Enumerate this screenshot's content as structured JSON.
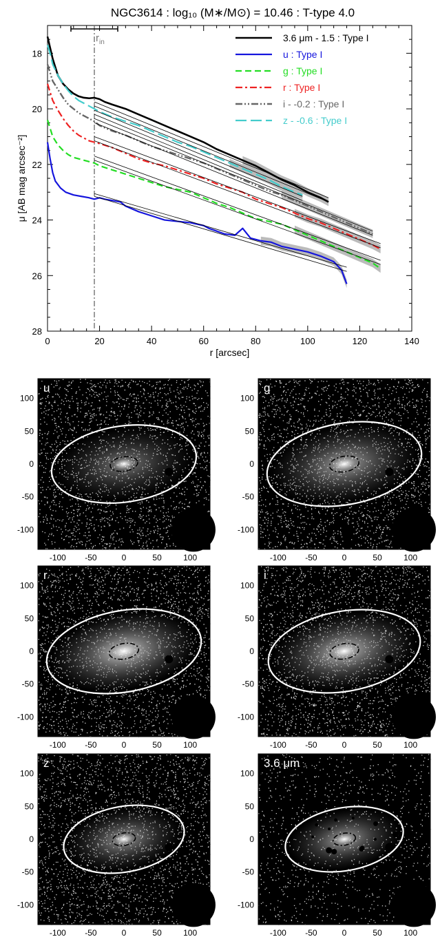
{
  "title": "NGC3614 : log₁₀ (M∗/M⊙) = 10.46 : T-type 4.0",
  "chart_data": [
    {
      "type": "line",
      "title": "NGC3614 : log10 (M*/Msun) = 10.46 : T-type 4.0",
      "xlabel": "r [arcsec]",
      "ylabel": "μ [AB mag arcsec⁻²]",
      "xlim": [
        0,
        140
      ],
      "ylim": [
        28,
        17
      ],
      "y_inverted": true,
      "xticks": [
        0,
        20,
        40,
        60,
        80,
        100,
        120,
        140
      ],
      "yticks": [
        18,
        20,
        22,
        24,
        26,
        28
      ],
      "grid": false,
      "legend_position": "top-right",
      "r_in": {
        "label": "r",
        "subscript": "in",
        "value": 18,
        "bar": [
          9,
          27
        ]
      },
      "series": [
        {
          "name": "3.6 μm - 1.5 : Type I",
          "color": "#000000",
          "dash": "solid",
          "width": 2.6,
          "label_color": "#000000",
          "x": [
            0,
            1,
            2,
            3,
            4,
            6,
            8,
            10,
            12,
            14,
            16,
            18,
            20,
            22,
            25,
            30,
            35,
            40,
            45,
            50,
            55,
            60,
            65,
            70,
            75,
            80,
            85,
            90,
            95,
            100,
            105,
            108
          ],
          "y": [
            17.4,
            17.8,
            18.2,
            18.5,
            18.8,
            19.1,
            19.3,
            19.45,
            19.55,
            19.6,
            19.62,
            19.6,
            19.65,
            19.75,
            19.85,
            20.0,
            20.2,
            20.4,
            20.6,
            20.8,
            21.0,
            21.2,
            21.45,
            21.65,
            21.85,
            22.05,
            22.3,
            22.55,
            22.75,
            23.0,
            23.2,
            23.35
          ],
          "fits": [
            {
              "x": [
                18,
                108
              ],
              "y": [
                19.9,
                23.35
              ]
            },
            {
              "x": [
                18,
                108
              ],
              "y": [
                19.75,
                23.2
              ]
            }
          ]
        },
        {
          "name": "u : Type I",
          "color": "#1515dd",
          "dash": "solid",
          "width": 2.2,
          "label_color": "#1515dd",
          "x": [
            0,
            1,
            2,
            3,
            5,
            7,
            10,
            13,
            16,
            18,
            20,
            22,
            25,
            28,
            30,
            35,
            40,
            45,
            50,
            55,
            60,
            62,
            65,
            68,
            72,
            75,
            78,
            82,
            86,
            90,
            95,
            100,
            105,
            110,
            113,
            115
          ],
          "y": [
            21.2,
            21.8,
            22.3,
            22.6,
            22.85,
            23.0,
            23.1,
            23.15,
            23.2,
            23.25,
            23.2,
            23.25,
            23.3,
            23.35,
            23.5,
            23.7,
            23.85,
            24.0,
            24.05,
            24.1,
            24.2,
            24.3,
            24.4,
            24.5,
            24.55,
            24.3,
            24.65,
            24.75,
            24.8,
            24.95,
            25.05,
            25.15,
            25.3,
            25.5,
            25.8,
            26.3
          ],
          "fits": [
            {
              "x": [
                18,
                115
              ],
              "y": [
                23.05,
                25.7
              ]
            },
            {
              "x": [
                18,
                115
              ],
              "y": [
                23.15,
                25.85
              ]
            }
          ]
        },
        {
          "name": "g : Type I",
          "color": "#22dd22",
          "dash": "dash",
          "width": 2.2,
          "label_color": "#22dd22",
          "x": [
            0,
            1,
            2,
            4,
            6,
            8,
            10,
            12,
            14,
            16,
            18,
            20,
            25,
            30,
            35,
            40,
            45,
            50,
            55,
            60,
            65,
            70,
            75,
            80,
            85,
            90,
            95,
            100,
            105,
            110,
            115,
            120,
            125,
            128
          ],
          "y": [
            20.4,
            20.7,
            21.0,
            21.3,
            21.5,
            21.65,
            21.75,
            21.8,
            21.85,
            21.9,
            21.95,
            22.05,
            22.2,
            22.35,
            22.5,
            22.65,
            22.8,
            22.9,
            23.0,
            23.2,
            23.4,
            23.55,
            23.75,
            23.95,
            24.05,
            24.15,
            24.35,
            24.55,
            24.75,
            24.95,
            25.15,
            25.35,
            25.55,
            25.75
          ],
          "fits": [
            {
              "x": [
                18,
                128
              ],
              "y": [
                21.85,
                25.6
              ]
            },
            {
              "x": [
                18,
                128
              ],
              "y": [
                21.7,
                25.45
              ]
            }
          ]
        },
        {
          "name": "r : Type I",
          "color": "#ee2222",
          "dash": "dashdot",
          "width": 2.2,
          "label_color": "#ee2222",
          "x": [
            0,
            1,
            2,
            4,
            6,
            8,
            10,
            12,
            14,
            16,
            18,
            20,
            25,
            30,
            35,
            40,
            45,
            50,
            55,
            60,
            65,
            70,
            75,
            80,
            85,
            90,
            95,
            100,
            105,
            110,
            115,
            120,
            125,
            128
          ],
          "y": [
            19.1,
            19.4,
            19.7,
            20.05,
            20.35,
            20.6,
            20.8,
            20.95,
            21.05,
            21.15,
            21.2,
            21.25,
            21.4,
            21.6,
            21.8,
            21.95,
            22.05,
            22.2,
            22.35,
            22.5,
            22.7,
            22.85,
            23.0,
            23.25,
            23.4,
            23.55,
            23.75,
            23.95,
            24.1,
            24.3,
            24.5,
            24.7,
            24.9,
            25.05
          ],
          "fits": [
            {
              "x": [
                18,
                128
              ],
              "y": [
                21.15,
                25.0
              ]
            },
            {
              "x": [
                18,
                128
              ],
              "y": [
                21.0,
                24.85
              ]
            }
          ]
        },
        {
          "name": "i - -0.2 : Type I",
          "color": "#666666",
          "dash": "dashdotdot",
          "width": 2.4,
          "label_color": "#666666",
          "x": [
            0,
            1,
            2,
            4,
            6,
            8,
            10,
            12,
            14,
            16,
            18,
            20,
            25,
            30,
            35,
            40,
            45,
            50,
            55,
            60,
            65,
            70,
            75,
            80,
            85,
            90,
            95,
            100,
            105,
            110,
            115,
            120,
            125
          ],
          "y": [
            18.4,
            18.7,
            19.0,
            19.3,
            19.6,
            19.85,
            20.0,
            20.15,
            20.25,
            20.35,
            20.45,
            20.6,
            20.8,
            20.95,
            21.15,
            21.35,
            21.5,
            21.65,
            21.8,
            21.95,
            22.15,
            22.35,
            22.55,
            22.75,
            22.95,
            23.1,
            23.3,
            23.5,
            23.7,
            23.9,
            24.1,
            24.3,
            24.5
          ],
          "fits": [
            {
              "x": [
                18,
                125
              ],
              "y": [
                20.5,
                24.55
              ]
            },
            {
              "x": [
                18,
                125
              ],
              "y": [
                20.35,
                24.4
              ]
            }
          ]
        },
        {
          "name": "z - -0.6 : Type I",
          "color": "#44cccc",
          "dash": "longdash",
          "width": 2.2,
          "label_color": "#44cccc",
          "x": [
            0,
            1,
            2,
            4,
            6,
            8,
            10,
            12,
            14,
            16,
            18,
            20,
            25,
            30,
            35,
            40,
            45,
            50,
            55,
            60,
            65,
            70,
            75,
            80,
            85,
            90,
            95,
            98
          ],
          "y": [
            17.7,
            18.0,
            18.4,
            18.8,
            19.1,
            19.35,
            19.55,
            19.7,
            19.8,
            19.9,
            20.0,
            20.1,
            20.3,
            20.45,
            20.6,
            20.8,
            21.0,
            21.2,
            21.35,
            21.55,
            21.75,
            21.95,
            22.15,
            22.35,
            22.55,
            22.8,
            23.0,
            23.1
          ],
          "fits": [
            {
              "x": [
                18,
                98
              ],
              "y": [
                20.2,
                23.3
              ]
            },
            {
              "x": [
                18,
                98
              ],
              "y": [
                20.05,
                23.15
              ]
            }
          ]
        }
      ]
    }
  ],
  "image_panels": [
    {
      "label": "u",
      "has_mu": false,
      "brightness": 0.45,
      "density": 0.55,
      "ellipse": {
        "a": 110,
        "b": 58,
        "pa": 8
      },
      "xticks": [
        -100,
        -50,
        0,
        50,
        100
      ],
      "yticks": [
        100,
        50,
        0,
        -50,
        -100
      ]
    },
    {
      "label": "g",
      "has_mu": false,
      "brightness": 0.6,
      "density": 0.55,
      "ellipse": {
        "a": 118,
        "b": 62,
        "pa": 10
      },
      "xticks": [
        -100,
        -50,
        0,
        50,
        100
      ],
      "yticks": [
        100,
        50,
        0,
        -50,
        -100
      ]
    },
    {
      "label": "r",
      "has_mu": false,
      "brightness": 0.75,
      "density": 0.55,
      "ellipse": {
        "a": 118,
        "b": 62,
        "pa": 10
      },
      "xticks": [
        -100,
        -50,
        0,
        50,
        100
      ],
      "yticks": [
        100,
        50,
        0,
        -50,
        -100
      ]
    },
    {
      "label": "i",
      "has_mu": false,
      "brightness": 0.7,
      "density": 0.55,
      "ellipse": {
        "a": 116,
        "b": 61,
        "pa": 10
      },
      "xticks": [
        -100,
        -50,
        0,
        50,
        100
      ],
      "yticks": [
        100,
        50,
        0,
        -50,
        -100
      ]
    },
    {
      "label": "z",
      "has_mu": false,
      "brightness": 0.55,
      "density": 0.55,
      "ellipse": {
        "a": 92,
        "b": 50,
        "pa": 10
      },
      "xticks": [
        -100,
        -50,
        0,
        50,
        100
      ],
      "yticks": [
        100,
        50,
        0,
        -50,
        -100
      ]
    },
    {
      "label": "3.6 ",
      "has_mu": true,
      "mu_suffix": "m",
      "brightness": 0.6,
      "density": 0.25,
      "ellipse": {
        "a": 90,
        "b": 48,
        "pa": 10
      },
      "xticks": [
        -100,
        -50,
        0,
        50,
        100
      ],
      "yticks": [
        100,
        50,
        0,
        -50,
        -100
      ]
    }
  ]
}
